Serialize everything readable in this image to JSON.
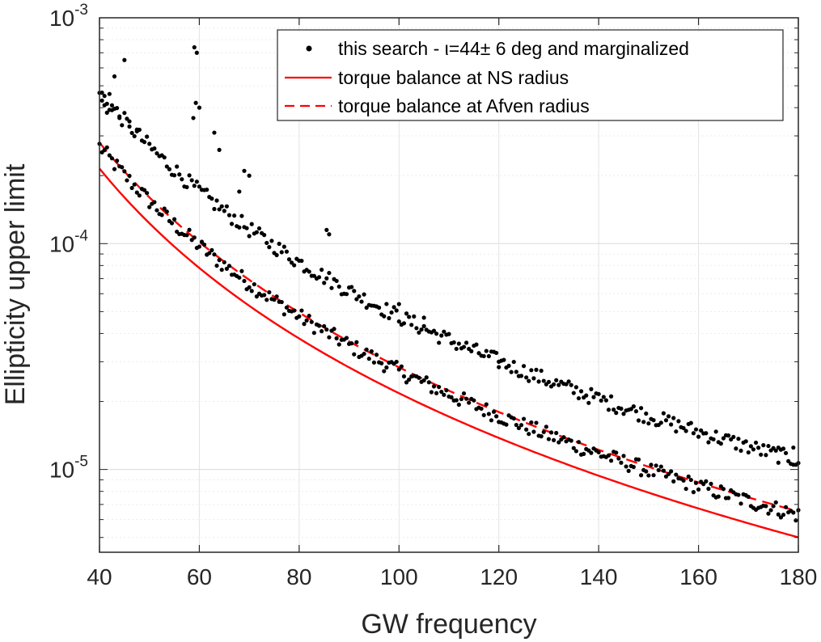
{
  "chart_data": {
    "type": "scatter",
    "title": "",
    "xlabel": "GW frequency",
    "ylabel": "Ellipticity upper limit",
    "xlim": [
      40,
      180
    ],
    "ylim": [
      4.3e-06,
      0.001
    ],
    "yscale": "log",
    "grid": true,
    "legend_position": "top-right",
    "x_ticks": [
      40,
      60,
      80,
      100,
      120,
      140,
      160,
      180
    ],
    "x_tick_labels": [
      "40",
      "60",
      "80",
      "100",
      "120",
      "140",
      "160",
      "180"
    ],
    "y_ticks": [
      1e-05,
      0.0001,
      0.001
    ],
    "y_tick_labels": [
      {
        "base": "10",
        "exp": "-5"
      },
      {
        "base": "10",
        "exp": "-4"
      },
      {
        "base": "10",
        "exp": "-3"
      }
    ],
    "series": [
      {
        "name": "torque balance at NS radius",
        "kind": "line",
        "style": "solid",
        "color": "#ff0000",
        "model": "power-law",
        "anchor": [
          40,
          0.000215
        ],
        "exponent": -2.5
      },
      {
        "name": "torque balance at Afven radius",
        "kind": "line",
        "style": "dashed",
        "color": "#ff0000",
        "model": "power-law",
        "anchor": [
          40,
          0.00028
        ],
        "exponent": -2.5
      },
      {
        "name": "this search - ι=44± 6 deg and marginalized",
        "kind": "points",
        "color": "#000000",
        "bands": [
          {
            "label": "lower band",
            "model": "power-law",
            "anchor": [
              40,
              0.00027
            ],
            "exponent": -2.5
          },
          {
            "label": "upper band",
            "model": "power-law",
            "anchor": [
              40,
              0.00047
            ],
            "exponent": -2.5
          }
        ],
        "outliers": [
          [
            40.5,
            0.00043
          ],
          [
            41,
            0.00041
          ],
          [
            41.5,
            0.00038
          ],
          [
            42,
            0.00046
          ],
          [
            42.5,
            0.00039
          ],
          [
            43,
            0.00055
          ],
          [
            44,
            0.00036
          ],
          [
            45,
            0.00065
          ],
          [
            46,
            0.00033
          ],
          [
            47.5,
            0.00032
          ],
          [
            59,
            0.00074
          ],
          [
            59.5,
            0.0007
          ],
          [
            59.3,
            0.00042
          ],
          [
            60,
            0.0004
          ],
          [
            58.8,
            0.00036
          ],
          [
            63,
            0.00031
          ],
          [
            64,
            0.00026
          ],
          [
            69,
            0.00021
          ],
          [
            70,
            0.0002
          ],
          [
            68,
            0.00017
          ],
          [
            85.5,
            0.000115
          ],
          [
            86,
            0.00011
          ],
          [
            100,
            5.4e-05
          ],
          [
            105,
            4.7e-05
          ],
          [
            120,
            3e-05
          ],
          [
            176,
            1.25e-05
          ],
          [
            179,
            1.25e-05
          ]
        ]
      }
    ]
  }
}
